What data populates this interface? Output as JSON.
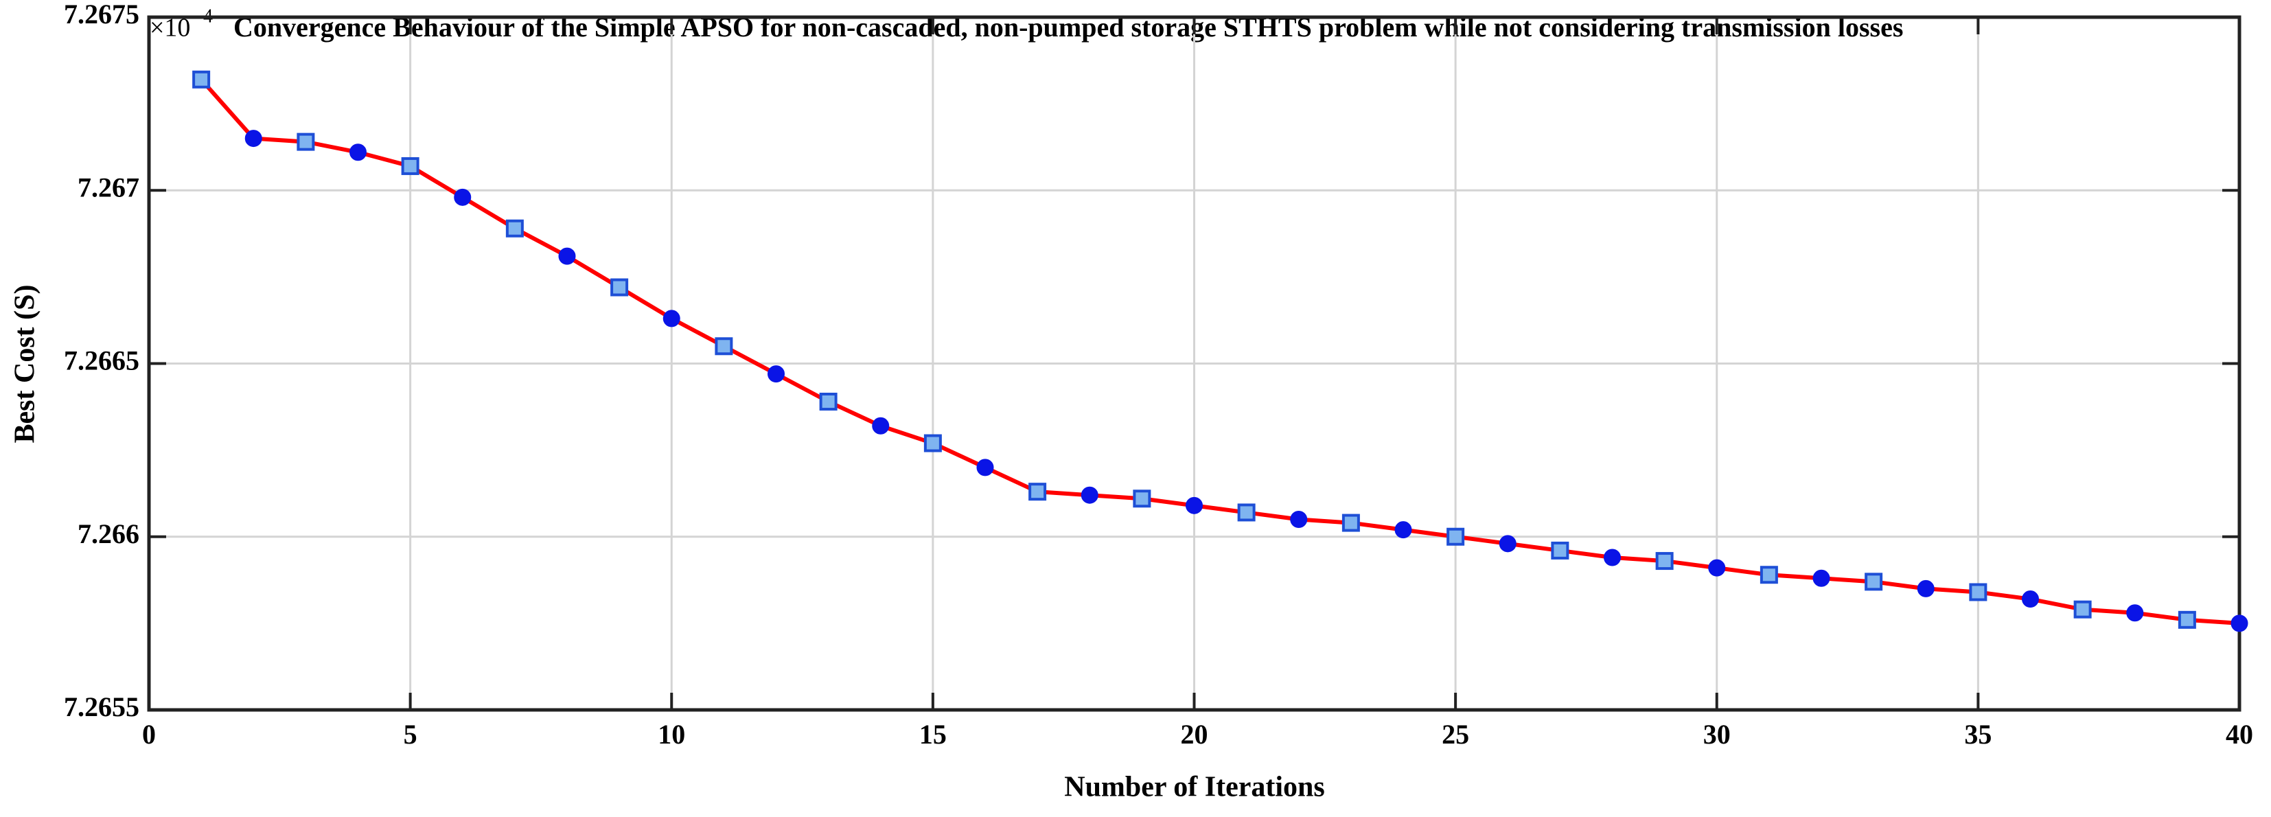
{
  "chart_data": {
    "type": "line",
    "title": "Convergence Behaviour of the Simple APSO for non-cascaded, non-pumped storage STHTS problem while not considering transmission losses",
    "x_label": "Number of Iterations",
    "y_label": "Best Cost (S)",
    "y_multiplier": {
      "base": "×10",
      "exponent": "4"
    },
    "x": [
      1,
      2,
      3,
      4,
      5,
      6,
      7,
      8,
      9,
      10,
      11,
      12,
      13,
      14,
      15,
      16,
      17,
      18,
      19,
      20,
      21,
      22,
      23,
      24,
      25,
      26,
      27,
      28,
      29,
      30,
      31,
      32,
      33,
      34,
      35,
      36,
      37,
      38,
      39,
      40
    ],
    "series": [
      {
        "name": "Best Cost",
        "color": "#ff0000",
        "values": [
          7.26732,
          7.26715,
          7.26714,
          7.26711,
          7.26707,
          7.26698,
          7.26689,
          7.26681,
          7.26672,
          7.26663,
          7.26655,
          7.26647,
          7.26639,
          7.26632,
          7.26627,
          7.2662,
          7.26613,
          7.26612,
          7.26611,
          7.26609,
          7.26607,
          7.26605,
          7.26604,
          7.26602,
          7.266,
          7.26598,
          7.26596,
          7.26594,
          7.26593,
          7.26591,
          7.26589,
          7.26588,
          7.26587,
          7.26585,
          7.26584,
          7.26582,
          7.26579,
          7.26578,
          7.26576,
          7.26575
        ]
      }
    ],
    "xlim": [
      0,
      40
    ],
    "xticks": [
      0,
      5,
      10,
      15,
      20,
      25,
      30,
      35,
      40
    ],
    "ylim": [
      7.2655,
      7.2675
    ],
    "yticks": [
      7.2655,
      7.266,
      7.2665,
      7.267,
      7.2675
    ],
    "grid": true
  }
}
